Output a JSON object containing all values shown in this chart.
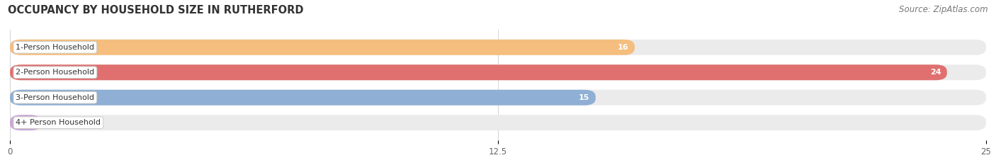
{
  "title": "OCCUPANCY BY HOUSEHOLD SIZE IN RUTHERFORD",
  "source": "Source: ZipAtlas.com",
  "categories": [
    "1-Person Household",
    "2-Person Household",
    "3-Person Household",
    "4+ Person Household"
  ],
  "values": [
    16,
    24,
    15,
    0
  ],
  "bar_colors": [
    "#F5BE7E",
    "#E07070",
    "#8FAFD4",
    "#C9A8D4"
  ],
  "bar_bg_color": "#EBEBEB",
  "xlim": [
    0,
    25
  ],
  "xticks": [
    0,
    12.5,
    25
  ],
  "bar_height": 0.62,
  "figsize": [
    14.06,
    2.33
  ],
  "dpi": 100,
  "title_fontsize": 10.5,
  "source_fontsize": 8.5,
  "label_fontsize": 8,
  "value_fontsize": 8
}
